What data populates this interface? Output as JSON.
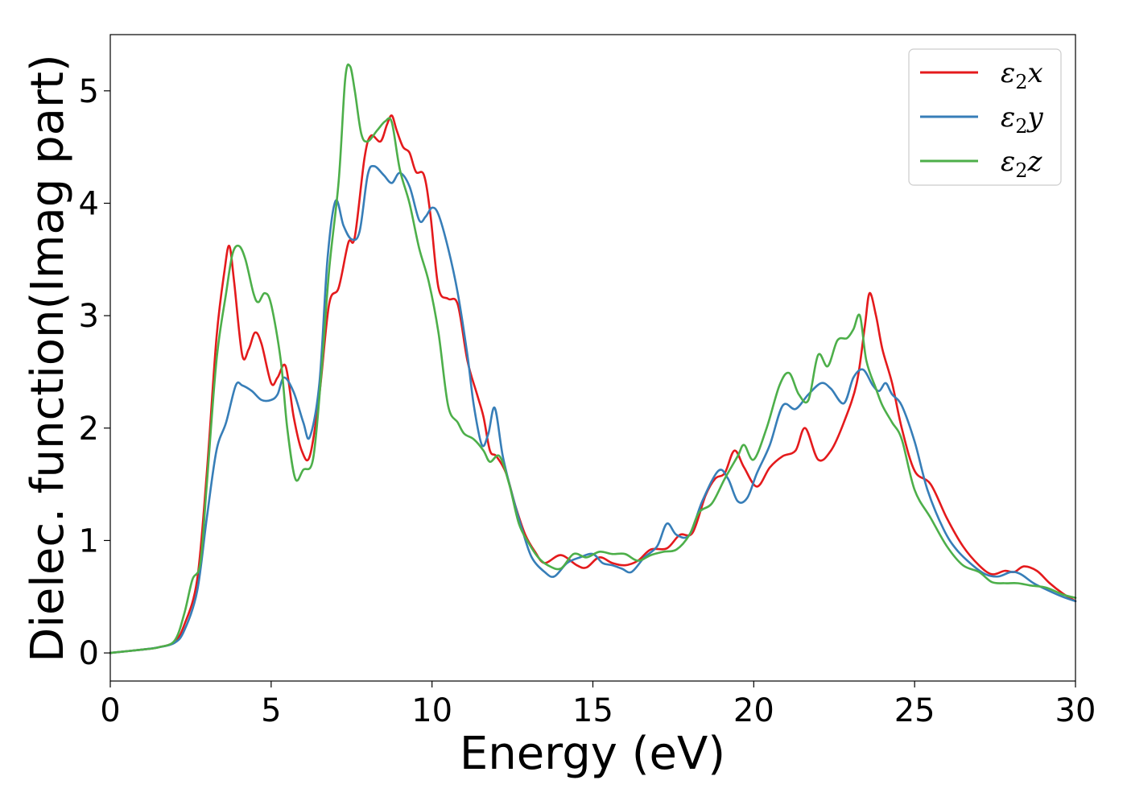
{
  "chart_data": {
    "type": "line",
    "xlabel": "Energy (eV)",
    "ylabel": "Dielec. function(Imag part)",
    "xlim": [
      0,
      30
    ],
    "ylim": [
      -0.25,
      5.5
    ],
    "xticks": [
      0,
      5,
      10,
      15,
      20,
      25,
      30
    ],
    "yticks": [
      0,
      1,
      2,
      3,
      4,
      5
    ],
    "grid": false,
    "legend_position": "top-right",
    "series": [
      {
        "name": "ε2x",
        "symbol": "ε",
        "subscript": "2",
        "axis": "x",
        "color": "#e41a1c",
        "points": [
          [
            0,
            0
          ],
          [
            1,
            0.03
          ],
          [
            1.5,
            0.05
          ],
          [
            2,
            0.1
          ],
          [
            2.3,
            0.25
          ],
          [
            2.7,
            0.65
          ],
          [
            3,
            1.6
          ],
          [
            3.3,
            2.8
          ],
          [
            3.55,
            3.4
          ],
          [
            3.7,
            3.62
          ],
          [
            3.85,
            3.3
          ],
          [
            4.1,
            2.65
          ],
          [
            4.3,
            2.7
          ],
          [
            4.5,
            2.85
          ],
          [
            4.7,
            2.75
          ],
          [
            5,
            2.4
          ],
          [
            5.2,
            2.45
          ],
          [
            5.45,
            2.55
          ],
          [
            5.7,
            2.1
          ],
          [
            5.95,
            1.8
          ],
          [
            6.2,
            1.75
          ],
          [
            6.5,
            2.3
          ],
          [
            6.8,
            3.1
          ],
          [
            7.1,
            3.25
          ],
          [
            7.4,
            3.65
          ],
          [
            7.6,
            3.7
          ],
          [
            7.9,
            4.4
          ],
          [
            8.1,
            4.6
          ],
          [
            8.4,
            4.55
          ],
          [
            8.6,
            4.7
          ],
          [
            8.75,
            4.78
          ],
          [
            8.9,
            4.65
          ],
          [
            9.1,
            4.5
          ],
          [
            9.3,
            4.45
          ],
          [
            9.5,
            4.28
          ],
          [
            9.75,
            4.25
          ],
          [
            9.95,
            3.9
          ],
          [
            10.2,
            3.25
          ],
          [
            10.5,
            3.15
          ],
          [
            10.8,
            3.1
          ],
          [
            11.1,
            2.6
          ],
          [
            11.4,
            2.3
          ],
          [
            11.6,
            2.1
          ],
          [
            11.8,
            1.8
          ],
          [
            12,
            1.75
          ],
          [
            12.3,
            1.6
          ],
          [
            12.6,
            1.3
          ],
          [
            12.9,
            1.05
          ],
          [
            13.2,
            0.9
          ],
          [
            13.5,
            0.8
          ],
          [
            14,
            0.87
          ],
          [
            14.5,
            0.78
          ],
          [
            14.8,
            0.76
          ],
          [
            15.2,
            0.85
          ],
          [
            15.6,
            0.8
          ],
          [
            16,
            0.78
          ],
          [
            16.4,
            0.82
          ],
          [
            16.8,
            0.92
          ],
          [
            17.3,
            0.93
          ],
          [
            17.7,
            1.05
          ],
          [
            18.1,
            1.07
          ],
          [
            18.5,
            1.4
          ],
          [
            18.8,
            1.55
          ],
          [
            19.1,
            1.6
          ],
          [
            19.4,
            1.8
          ],
          [
            19.7,
            1.65
          ],
          [
            20.1,
            1.48
          ],
          [
            20.5,
            1.65
          ],
          [
            20.9,
            1.75
          ],
          [
            21.3,
            1.8
          ],
          [
            21.6,
            2.0
          ],
          [
            22,
            1.72
          ],
          [
            22.4,
            1.8
          ],
          [
            22.8,
            2.05
          ],
          [
            23.2,
            2.4
          ],
          [
            23.45,
            2.9
          ],
          [
            23.6,
            3.2
          ],
          [
            23.8,
            3.0
          ],
          [
            24,
            2.7
          ],
          [
            24.3,
            2.4
          ],
          [
            24.6,
            2.0
          ],
          [
            25,
            1.62
          ],
          [
            25.5,
            1.5
          ],
          [
            26,
            1.2
          ],
          [
            26.5,
            0.95
          ],
          [
            27,
            0.78
          ],
          [
            27.4,
            0.7
          ],
          [
            27.8,
            0.73
          ],
          [
            28.1,
            0.72
          ],
          [
            28.4,
            0.77
          ],
          [
            28.8,
            0.73
          ],
          [
            29.2,
            0.62
          ],
          [
            29.6,
            0.53
          ],
          [
            30,
            0.46
          ]
        ]
      },
      {
        "name": "ε2y",
        "symbol": "ε",
        "subscript": "2",
        "axis": "y",
        "color": "#377eb8",
        "points": [
          [
            0,
            0
          ],
          [
            1,
            0.03
          ],
          [
            1.5,
            0.05
          ],
          [
            2,
            0.09
          ],
          [
            2.3,
            0.2
          ],
          [
            2.7,
            0.55
          ],
          [
            3,
            1.2
          ],
          [
            3.3,
            1.8
          ],
          [
            3.6,
            2.05
          ],
          [
            3.9,
            2.38
          ],
          [
            4.1,
            2.38
          ],
          [
            4.4,
            2.33
          ],
          [
            4.7,
            2.25
          ],
          [
            5,
            2.25
          ],
          [
            5.2,
            2.3
          ],
          [
            5.4,
            2.45
          ],
          [
            5.7,
            2.32
          ],
          [
            6,
            2.05
          ],
          [
            6.2,
            1.92
          ],
          [
            6.5,
            2.4
          ],
          [
            6.75,
            3.5
          ],
          [
            7,
            4.02
          ],
          [
            7.25,
            3.8
          ],
          [
            7.5,
            3.68
          ],
          [
            7.75,
            3.75
          ],
          [
            8,
            4.25
          ],
          [
            8.2,
            4.33
          ],
          [
            8.5,
            4.25
          ],
          [
            8.75,
            4.18
          ],
          [
            9,
            4.27
          ],
          [
            9.3,
            4.15
          ],
          [
            9.6,
            3.85
          ],
          [
            9.8,
            3.88
          ],
          [
            10,
            3.96
          ],
          [
            10.2,
            3.9
          ],
          [
            10.5,
            3.6
          ],
          [
            10.8,
            3.2
          ],
          [
            11.1,
            2.65
          ],
          [
            11.3,
            2.2
          ],
          [
            11.55,
            1.85
          ],
          [
            11.75,
            1.95
          ],
          [
            11.95,
            2.18
          ],
          [
            12.2,
            1.75
          ],
          [
            12.5,
            1.4
          ],
          [
            12.8,
            1.1
          ],
          [
            13.1,
            0.85
          ],
          [
            13.5,
            0.72
          ],
          [
            13.8,
            0.68
          ],
          [
            14.2,
            0.8
          ],
          [
            14.6,
            0.85
          ],
          [
            15,
            0.88
          ],
          [
            15.3,
            0.8
          ],
          [
            15.6,
            0.78
          ],
          [
            15.9,
            0.75
          ],
          [
            16.2,
            0.72
          ],
          [
            16.6,
            0.85
          ],
          [
            17,
            0.95
          ],
          [
            17.3,
            1.15
          ],
          [
            17.6,
            1.05
          ],
          [
            18,
            1.05
          ],
          [
            18.4,
            1.35
          ],
          [
            18.9,
            1.62
          ],
          [
            19.2,
            1.55
          ],
          [
            19.5,
            1.35
          ],
          [
            19.8,
            1.38
          ],
          [
            20.1,
            1.6
          ],
          [
            20.5,
            1.85
          ],
          [
            20.9,
            2.2
          ],
          [
            21.3,
            2.17
          ],
          [
            21.7,
            2.3
          ],
          [
            22.1,
            2.4
          ],
          [
            22.4,
            2.35
          ],
          [
            22.8,
            2.22
          ],
          [
            23.1,
            2.45
          ],
          [
            23.4,
            2.52
          ],
          [
            23.7,
            2.38
          ],
          [
            23.9,
            2.33
          ],
          [
            24.1,
            2.4
          ],
          [
            24.3,
            2.3
          ],
          [
            24.6,
            2.2
          ],
          [
            25,
            1.88
          ],
          [
            25.4,
            1.45
          ],
          [
            25.9,
            1.1
          ],
          [
            26.3,
            0.92
          ],
          [
            26.8,
            0.78
          ],
          [
            27.2,
            0.7
          ],
          [
            27.6,
            0.68
          ],
          [
            28,
            0.72
          ],
          [
            28.3,
            0.7
          ],
          [
            28.7,
            0.62
          ],
          [
            29.2,
            0.55
          ],
          [
            29.6,
            0.5
          ],
          [
            30,
            0.46
          ]
        ]
      },
      {
        "name": "ε2z",
        "symbol": "ε",
        "subscript": "2",
        "axis": "z",
        "color": "#4daf4a",
        "points": [
          [
            0,
            0
          ],
          [
            1,
            0.03
          ],
          [
            1.5,
            0.05
          ],
          [
            2,
            0.11
          ],
          [
            2.3,
            0.35
          ],
          [
            2.55,
            0.65
          ],
          [
            2.8,
            0.8
          ],
          [
            3,
            1.5
          ],
          [
            3.3,
            2.6
          ],
          [
            3.6,
            3.2
          ],
          [
            3.8,
            3.55
          ],
          [
            4,
            3.62
          ],
          [
            4.2,
            3.5
          ],
          [
            4.45,
            3.2
          ],
          [
            4.6,
            3.12
          ],
          [
            4.8,
            3.2
          ],
          [
            5,
            3.1
          ],
          [
            5.3,
            2.6
          ],
          [
            5.5,
            2.0
          ],
          [
            5.75,
            1.55
          ],
          [
            6,
            1.63
          ],
          [
            6.3,
            1.72
          ],
          [
            6.55,
            2.45
          ],
          [
            6.8,
            3.4
          ],
          [
            7.1,
            4.2
          ],
          [
            7.3,
            5.1
          ],
          [
            7.45,
            5.22
          ],
          [
            7.6,
            5.0
          ],
          [
            7.8,
            4.62
          ],
          [
            8,
            4.55
          ],
          [
            8.3,
            4.65
          ],
          [
            8.55,
            4.73
          ],
          [
            8.75,
            4.72
          ],
          [
            9,
            4.3
          ],
          [
            9.3,
            4.0
          ],
          [
            9.6,
            3.6
          ],
          [
            9.9,
            3.3
          ],
          [
            10.2,
            2.85
          ],
          [
            10.5,
            2.2
          ],
          [
            10.8,
            2.05
          ],
          [
            11,
            1.95
          ],
          [
            11.3,
            1.9
          ],
          [
            11.6,
            1.8
          ],
          [
            11.8,
            1.7
          ],
          [
            12.1,
            1.75
          ],
          [
            12.4,
            1.5
          ],
          [
            12.7,
            1.15
          ],
          [
            13,
            0.98
          ],
          [
            13.3,
            0.85
          ],
          [
            13.6,
            0.78
          ],
          [
            14,
            0.75
          ],
          [
            14.4,
            0.88
          ],
          [
            14.8,
            0.85
          ],
          [
            15.2,
            0.9
          ],
          [
            15.6,
            0.88
          ],
          [
            16,
            0.88
          ],
          [
            16.4,
            0.82
          ],
          [
            16.8,
            0.87
          ],
          [
            17.2,
            0.9
          ],
          [
            17.6,
            0.92
          ],
          [
            18,
            1.05
          ],
          [
            18.3,
            1.25
          ],
          [
            18.7,
            1.33
          ],
          [
            19.1,
            1.55
          ],
          [
            19.5,
            1.75
          ],
          [
            19.7,
            1.85
          ],
          [
            20,
            1.72
          ],
          [
            20.4,
            2.0
          ],
          [
            20.8,
            2.38
          ],
          [
            21.1,
            2.49
          ],
          [
            21.4,
            2.3
          ],
          [
            21.7,
            2.25
          ],
          [
            22,
            2.65
          ],
          [
            22.3,
            2.55
          ],
          [
            22.6,
            2.78
          ],
          [
            22.9,
            2.8
          ],
          [
            23.1,
            2.88
          ],
          [
            23.3,
            3.0
          ],
          [
            23.5,
            2.6
          ],
          [
            23.8,
            2.35
          ],
          [
            24,
            2.2
          ],
          [
            24.3,
            2.05
          ],
          [
            24.6,
            1.9
          ],
          [
            25,
            1.45
          ],
          [
            25.5,
            1.2
          ],
          [
            26,
            0.95
          ],
          [
            26.5,
            0.78
          ],
          [
            27,
            0.72
          ],
          [
            27.4,
            0.63
          ],
          [
            27.8,
            0.62
          ],
          [
            28.2,
            0.62
          ],
          [
            28.6,
            0.6
          ],
          [
            29.1,
            0.58
          ],
          [
            29.6,
            0.52
          ],
          [
            30,
            0.49
          ]
        ]
      }
    ]
  }
}
